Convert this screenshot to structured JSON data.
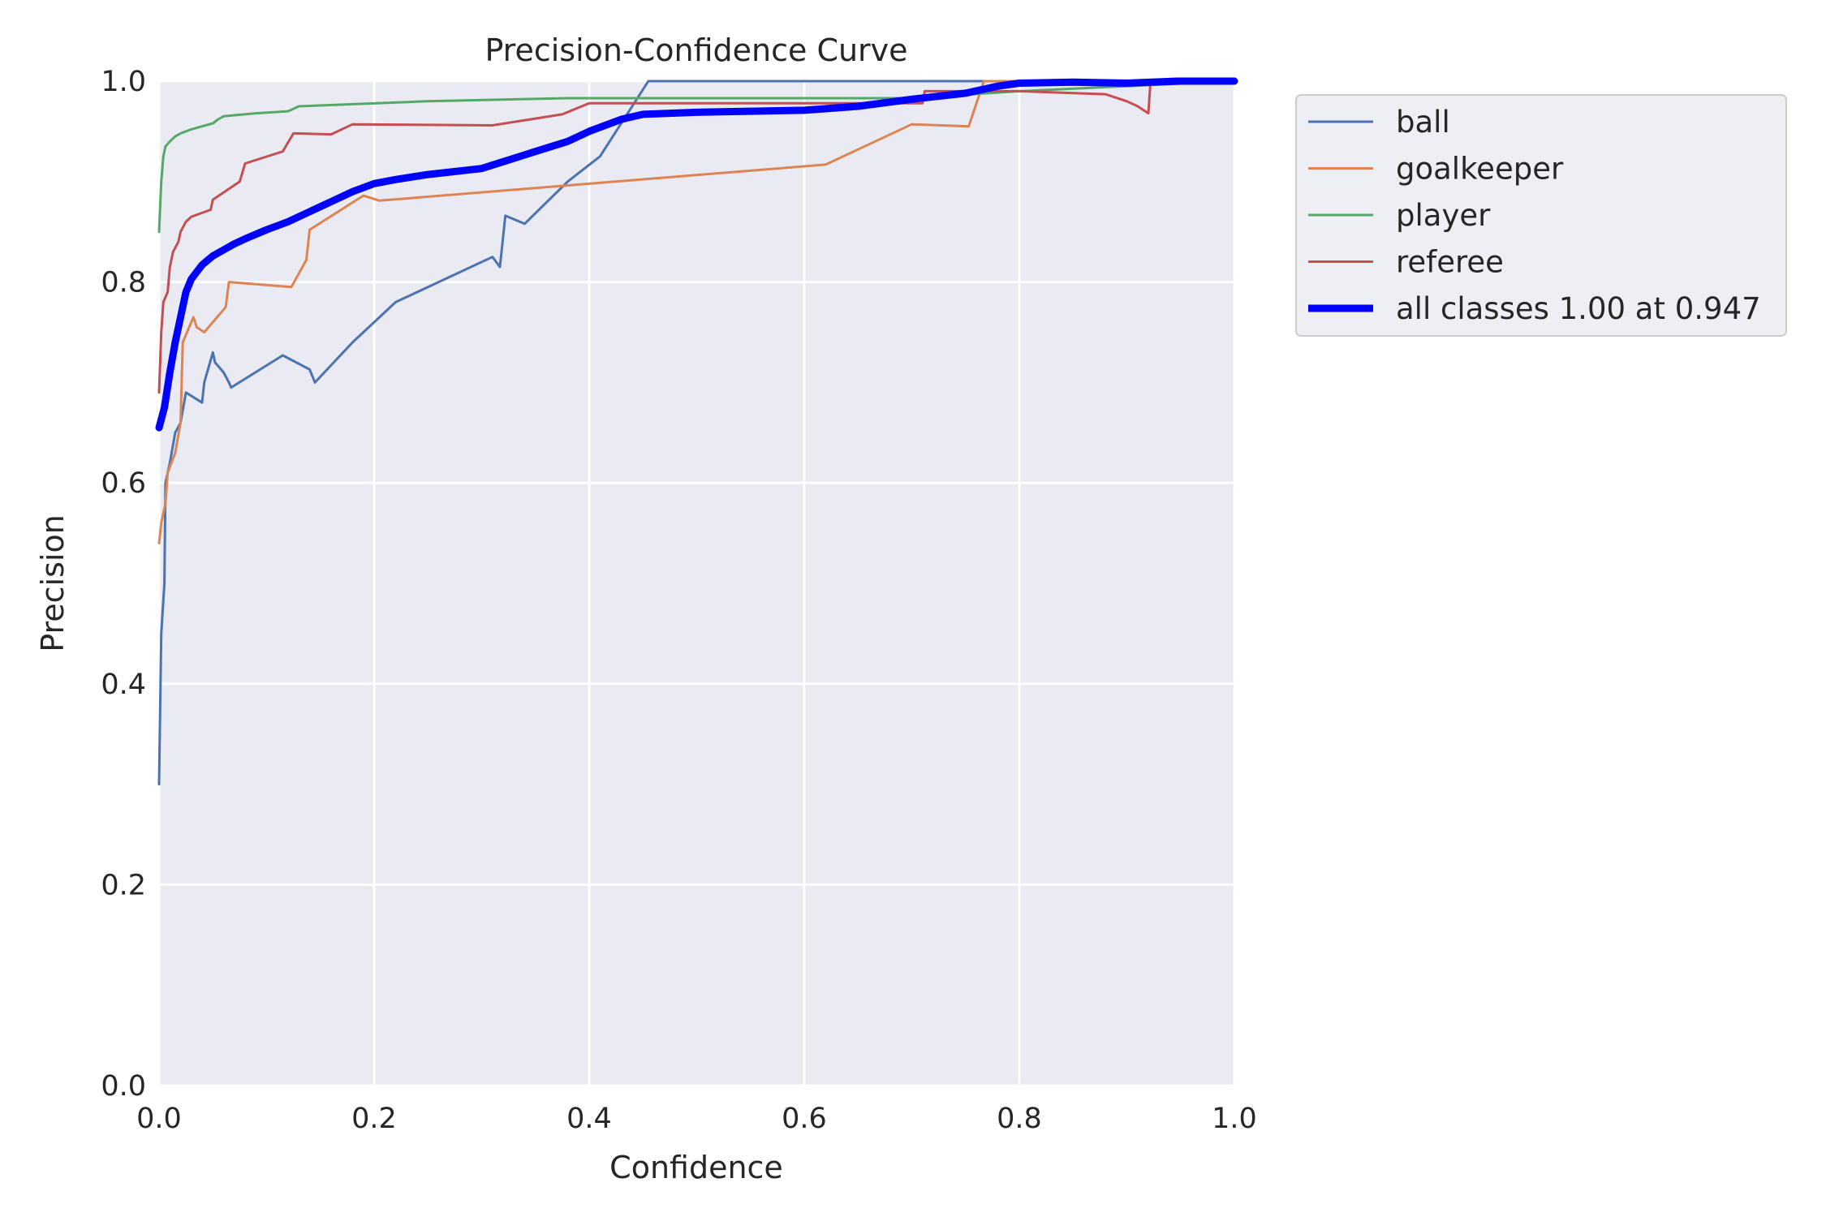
{
  "chart_data": {
    "type": "line",
    "title": "Precision-Confidence Curve",
    "xlabel": "Confidence",
    "ylabel": "Precision",
    "xlim": [
      0,
      1
    ],
    "ylim": [
      0,
      1
    ],
    "xticks": [
      "0.0",
      "0.2",
      "0.4",
      "0.6",
      "0.8",
      "1.0"
    ],
    "yticks": [
      "0.0",
      "0.2",
      "0.4",
      "0.6",
      "0.8",
      "1.0"
    ],
    "grid": true,
    "legend": "outside-top-right",
    "background_color": "#eaeaf2",
    "series": [
      {
        "name": "ball",
        "color": "#4c72b0",
        "width": 3,
        "points": [
          [
            0.0,
            0.3
          ],
          [
            0.002,
            0.45
          ],
          [
            0.005,
            0.5
          ],
          [
            0.006,
            0.6
          ],
          [
            0.01,
            0.62
          ],
          [
            0.015,
            0.65
          ],
          [
            0.02,
            0.66
          ],
          [
            0.025,
            0.69
          ],
          [
            0.04,
            0.68
          ],
          [
            0.042,
            0.7
          ],
          [
            0.05,
            0.73
          ],
          [
            0.052,
            0.72
          ],
          [
            0.06,
            0.71
          ],
          [
            0.065,
            0.7
          ],
          [
            0.067,
            0.695
          ],
          [
            0.115,
            0.727
          ],
          [
            0.14,
            0.713
          ],
          [
            0.145,
            0.7
          ],
          [
            0.18,
            0.74
          ],
          [
            0.22,
            0.78
          ],
          [
            0.31,
            0.825
          ],
          [
            0.317,
            0.815
          ],
          [
            0.322,
            0.866
          ],
          [
            0.34,
            0.858
          ],
          [
            0.38,
            0.9
          ],
          [
            0.41,
            0.925
          ],
          [
            0.44,
            0.975
          ],
          [
            0.455,
            1.0
          ],
          [
            1.0,
            1.0
          ]
        ]
      },
      {
        "name": "goalkeeper",
        "color": "#dd8452",
        "width": 3,
        "points": [
          [
            0.0,
            0.54
          ],
          [
            0.002,
            0.56
          ],
          [
            0.006,
            0.58
          ],
          [
            0.008,
            0.61
          ],
          [
            0.015,
            0.63
          ],
          [
            0.02,
            0.66
          ],
          [
            0.022,
            0.74
          ],
          [
            0.032,
            0.765
          ],
          [
            0.035,
            0.755
          ],
          [
            0.042,
            0.75
          ],
          [
            0.062,
            0.775
          ],
          [
            0.065,
            0.8
          ],
          [
            0.123,
            0.795
          ],
          [
            0.137,
            0.822
          ],
          [
            0.14,
            0.852
          ],
          [
            0.19,
            0.886
          ],
          [
            0.205,
            0.881
          ],
          [
            0.62,
            0.917
          ],
          [
            0.7,
            0.957
          ],
          [
            0.753,
            0.955
          ],
          [
            0.767,
            1.0
          ],
          [
            1.0,
            1.0
          ]
        ]
      },
      {
        "name": "player",
        "color": "#55a868",
        "width": 3,
        "points": [
          [
            0.0,
            0.85
          ],
          [
            0.002,
            0.9
          ],
          [
            0.004,
            0.925
          ],
          [
            0.006,
            0.935
          ],
          [
            0.01,
            0.94
          ],
          [
            0.015,
            0.945
          ],
          [
            0.02,
            0.948
          ],
          [
            0.03,
            0.952
          ],
          [
            0.04,
            0.955
          ],
          [
            0.05,
            0.958
          ],
          [
            0.055,
            0.962
          ],
          [
            0.06,
            0.965
          ],
          [
            0.09,
            0.968
          ],
          [
            0.12,
            0.97
          ],
          [
            0.13,
            0.975
          ],
          [
            0.25,
            0.98
          ],
          [
            0.38,
            0.983
          ],
          [
            0.7,
            0.983
          ],
          [
            0.8,
            0.99
          ],
          [
            1.0,
            1.0
          ]
        ]
      },
      {
        "name": "referee",
        "color": "#c44e52",
        "width": 3,
        "points": [
          [
            0.0,
            0.69
          ],
          [
            0.002,
            0.75
          ],
          [
            0.004,
            0.78
          ],
          [
            0.008,
            0.79
          ],
          [
            0.01,
            0.815
          ],
          [
            0.013,
            0.83
          ],
          [
            0.018,
            0.84
          ],
          [
            0.02,
            0.85
          ],
          [
            0.025,
            0.86
          ],
          [
            0.03,
            0.865
          ],
          [
            0.048,
            0.872
          ],
          [
            0.05,
            0.882
          ],
          [
            0.075,
            0.9
          ],
          [
            0.08,
            0.918
          ],
          [
            0.115,
            0.93
          ],
          [
            0.125,
            0.948
          ],
          [
            0.16,
            0.947
          ],
          [
            0.18,
            0.957
          ],
          [
            0.31,
            0.956
          ],
          [
            0.375,
            0.967
          ],
          [
            0.4,
            0.978
          ],
          [
            0.71,
            0.978
          ],
          [
            0.712,
            0.99
          ],
          [
            0.8,
            0.99
          ],
          [
            0.88,
            0.987
          ],
          [
            0.9,
            0.98
          ],
          [
            0.91,
            0.975
          ],
          [
            0.92,
            0.968
          ],
          [
            0.922,
            1.0
          ],
          [
            1.0,
            1.0
          ]
        ]
      },
      {
        "name": "all classes 1.00 at 0.947",
        "color": "#0000ff",
        "width": 9,
        "points": [
          [
            0.0,
            0.655
          ],
          [
            0.005,
            0.675
          ],
          [
            0.01,
            0.71
          ],
          [
            0.015,
            0.74
          ],
          [
            0.02,
            0.765
          ],
          [
            0.025,
            0.79
          ],
          [
            0.03,
            0.803
          ],
          [
            0.035,
            0.81
          ],
          [
            0.04,
            0.817
          ],
          [
            0.05,
            0.826
          ],
          [
            0.06,
            0.832
          ],
          [
            0.07,
            0.838
          ],
          [
            0.08,
            0.843
          ],
          [
            0.1,
            0.852
          ],
          [
            0.12,
            0.86
          ],
          [
            0.14,
            0.87
          ],
          [
            0.16,
            0.88
          ],
          [
            0.18,
            0.89
          ],
          [
            0.2,
            0.898
          ],
          [
            0.22,
            0.902
          ],
          [
            0.25,
            0.907
          ],
          [
            0.3,
            0.913
          ],
          [
            0.35,
            0.93
          ],
          [
            0.38,
            0.94
          ],
          [
            0.4,
            0.95
          ],
          [
            0.43,
            0.962
          ],
          [
            0.45,
            0.967
          ],
          [
            0.5,
            0.969
          ],
          [
            0.55,
            0.97
          ],
          [
            0.6,
            0.971
          ],
          [
            0.65,
            0.975
          ],
          [
            0.7,
            0.982
          ],
          [
            0.75,
            0.988
          ],
          [
            0.78,
            0.995
          ],
          [
            0.8,
            0.998
          ],
          [
            0.85,
            0.999
          ],
          [
            0.9,
            0.998
          ],
          [
            0.947,
            1.0
          ],
          [
            1.0,
            1.0
          ]
        ]
      }
    ]
  }
}
